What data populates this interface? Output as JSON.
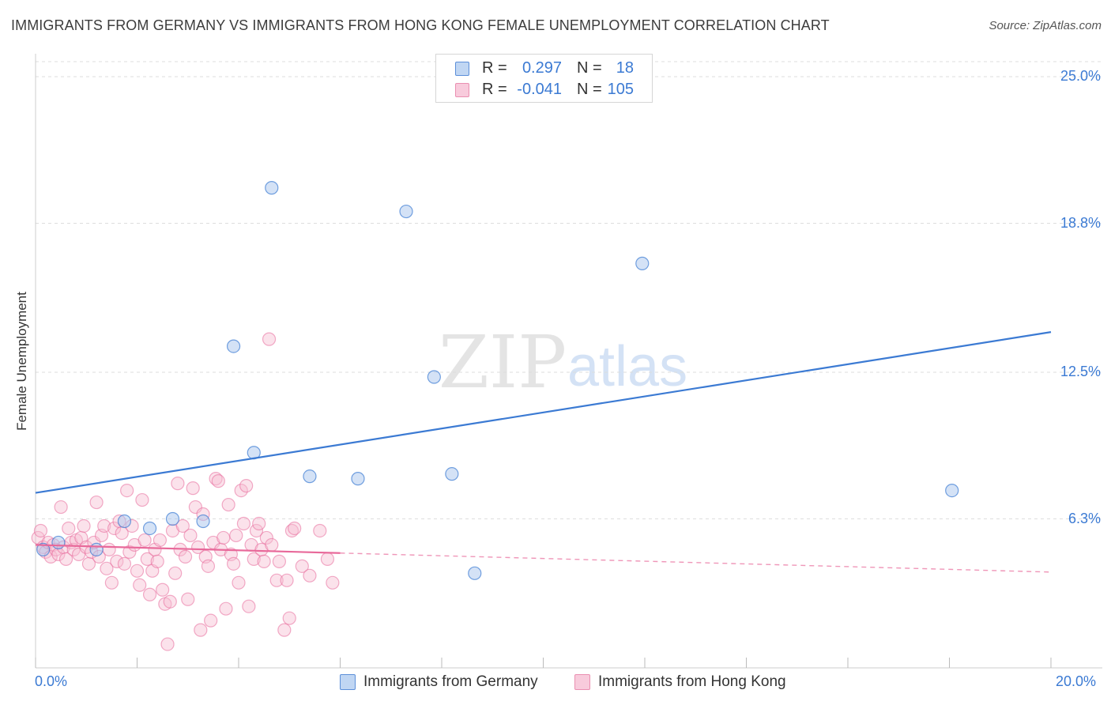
{
  "header": {
    "title": "IMMIGRANTS FROM GERMANY VS IMMIGRANTS FROM HONG KONG FEMALE UNEMPLOYMENT CORRELATION CHART",
    "source": "Source: ZipAtlas.com"
  },
  "watermark": {
    "part1": "ZIP",
    "part2": "atlas"
  },
  "colors": {
    "blue": "#3b7ad3",
    "blue_fill": "#a9c6ee",
    "pink": "#e8699a",
    "pink_fill": "#f6bfd2",
    "grid": "#dddddd"
  },
  "legend": {
    "rows": [
      {
        "r_label": "R =",
        "r_value": "0.297",
        "n_label": "N =",
        "n_value": "18"
      },
      {
        "r_label": "R =",
        "r_value": "-0.041",
        "n_label": "N =",
        "n_value": "105"
      }
    ]
  },
  "bottom_legend": {
    "germany": "Immigrants from Germany",
    "hongkong": "Immigrants from Hong Kong"
  },
  "chart_data": {
    "type": "scatter",
    "title": "IMMIGRANTS FROM GERMANY VS IMMIGRANTS FROM HONG KONG FEMALE UNEMPLOYMENT CORRELATION CHART",
    "xlabel": "",
    "ylabel": "Female Unemployment",
    "xlim": [
      0,
      20
    ],
    "ylim": [
      0,
      25
    ],
    "x_tick_labels": [
      "0.0%",
      "20.0%"
    ],
    "y_ticks": [
      6.3,
      12.5,
      18.8,
      25.0
    ],
    "y_tick_labels": [
      "6.3%",
      "12.5%",
      "18.8%",
      "25.0%"
    ],
    "grid": true,
    "legend_position": "top-center",
    "series": [
      {
        "name": "Immigrants from Germany",
        "color": "#3b7ad3",
        "trend": {
          "x": [
            0,
            20
          ],
          "y": [
            7.4,
            14.2
          ],
          "dashed_from": null
        },
        "points": [
          [
            0.15,
            5.0
          ],
          [
            0.45,
            5.3
          ],
          [
            1.2,
            5.0
          ],
          [
            1.75,
            6.2
          ],
          [
            2.25,
            5.9
          ],
          [
            2.7,
            6.3
          ],
          [
            3.3,
            6.2
          ],
          [
            3.9,
            13.6
          ],
          [
            4.3,
            9.1
          ],
          [
            4.65,
            20.3
          ],
          [
            5.4,
            8.1
          ],
          [
            6.35,
            8.0
          ],
          [
            7.3,
            19.3
          ],
          [
            7.85,
            12.3
          ],
          [
            8.2,
            8.2
          ],
          [
            8.65,
            4.0
          ],
          [
            11.95,
            17.1
          ],
          [
            18.05,
            7.5
          ]
        ]
      },
      {
        "name": "Immigrants from Hong Kong",
        "color": "#e8699a",
        "trend": {
          "x": [
            0,
            20
          ],
          "y": [
            5.2,
            4.05
          ],
          "dashed_from": 6.0
        },
        "points": [
          [
            0.05,
            5.5
          ],
          [
            0.1,
            5.8
          ],
          [
            0.15,
            5.1
          ],
          [
            0.2,
            4.9
          ],
          [
            0.25,
            5.3
          ],
          [
            0.3,
            4.7
          ],
          [
            0.35,
            5.2
          ],
          [
            0.4,
            5.0
          ],
          [
            0.45,
            4.8
          ],
          [
            0.5,
            6.8
          ],
          [
            0.55,
            5.1
          ],
          [
            0.6,
            4.6
          ],
          [
            0.65,
            5.9
          ],
          [
            0.7,
            5.3
          ],
          [
            0.75,
            5.0
          ],
          [
            0.8,
            5.4
          ],
          [
            0.85,
            4.8
          ],
          [
            0.9,
            5.5
          ],
          [
            0.95,
            6.0
          ],
          [
            1.0,
            5.1
          ],
          [
            1.05,
            4.4
          ],
          [
            1.1,
            4.9
          ],
          [
            1.15,
            5.3
          ],
          [
            1.2,
            7.0
          ],
          [
            1.25,
            4.7
          ],
          [
            1.3,
            5.6
          ],
          [
            1.35,
            6.0
          ],
          [
            1.4,
            4.2
          ],
          [
            1.45,
            5.0
          ],
          [
            1.5,
            3.6
          ],
          [
            1.55,
            5.9
          ],
          [
            1.6,
            4.5
          ],
          [
            1.65,
            6.2
          ],
          [
            1.7,
            5.7
          ],
          [
            1.75,
            4.4
          ],
          [
            1.8,
            7.5
          ],
          [
            1.85,
            4.9
          ],
          [
            1.9,
            6.0
          ],
          [
            1.95,
            5.2
          ],
          [
            2.0,
            4.1
          ],
          [
            2.05,
            3.5
          ],
          [
            2.1,
            7.1
          ],
          [
            2.15,
            5.4
          ],
          [
            2.2,
            4.6
          ],
          [
            2.25,
            3.1
          ],
          [
            2.3,
            4.1
          ],
          [
            2.35,
            5.0
          ],
          [
            2.4,
            4.5
          ],
          [
            2.45,
            5.4
          ],
          [
            2.5,
            3.3
          ],
          [
            2.55,
            2.7
          ],
          [
            2.6,
            1.0
          ],
          [
            2.65,
            2.8
          ],
          [
            2.7,
            5.8
          ],
          [
            2.75,
            4.0
          ],
          [
            2.8,
            7.8
          ],
          [
            2.85,
            5.0
          ],
          [
            2.9,
            6.0
          ],
          [
            2.95,
            4.7
          ],
          [
            3.0,
            2.9
          ],
          [
            3.05,
            5.6
          ],
          [
            3.1,
            7.6
          ],
          [
            3.15,
            6.8
          ],
          [
            3.2,
            5.1
          ],
          [
            3.25,
            1.6
          ],
          [
            3.3,
            6.5
          ],
          [
            3.35,
            4.7
          ],
          [
            3.4,
            4.3
          ],
          [
            3.45,
            2.0
          ],
          [
            3.5,
            5.3
          ],
          [
            3.55,
            8.0
          ],
          [
            3.6,
            7.9
          ],
          [
            3.65,
            5.0
          ],
          [
            3.7,
            5.5
          ],
          [
            3.75,
            2.5
          ],
          [
            3.8,
            6.9
          ],
          [
            3.85,
            4.8
          ],
          [
            3.9,
            4.4
          ],
          [
            3.95,
            5.6
          ],
          [
            4.0,
            3.6
          ],
          [
            4.05,
            7.5
          ],
          [
            4.1,
            6.1
          ],
          [
            4.15,
            7.7
          ],
          [
            4.2,
            2.6
          ],
          [
            4.25,
            5.2
          ],
          [
            4.3,
            4.6
          ],
          [
            4.35,
            5.8
          ],
          [
            4.4,
            6.1
          ],
          [
            4.45,
            5.0
          ],
          [
            4.5,
            4.5
          ],
          [
            4.55,
            5.5
          ],
          [
            4.6,
            13.9
          ],
          [
            4.65,
            5.2
          ],
          [
            4.75,
            3.7
          ],
          [
            4.8,
            4.5
          ],
          [
            4.9,
            1.6
          ],
          [
            4.95,
            3.7
          ],
          [
            5.0,
            2.1
          ],
          [
            5.05,
            5.8
          ],
          [
            5.1,
            5.9
          ],
          [
            5.25,
            4.3
          ],
          [
            5.4,
            3.9
          ],
          [
            5.6,
            5.8
          ],
          [
            5.75,
            4.6
          ],
          [
            5.85,
            3.6
          ]
        ]
      }
    ]
  }
}
